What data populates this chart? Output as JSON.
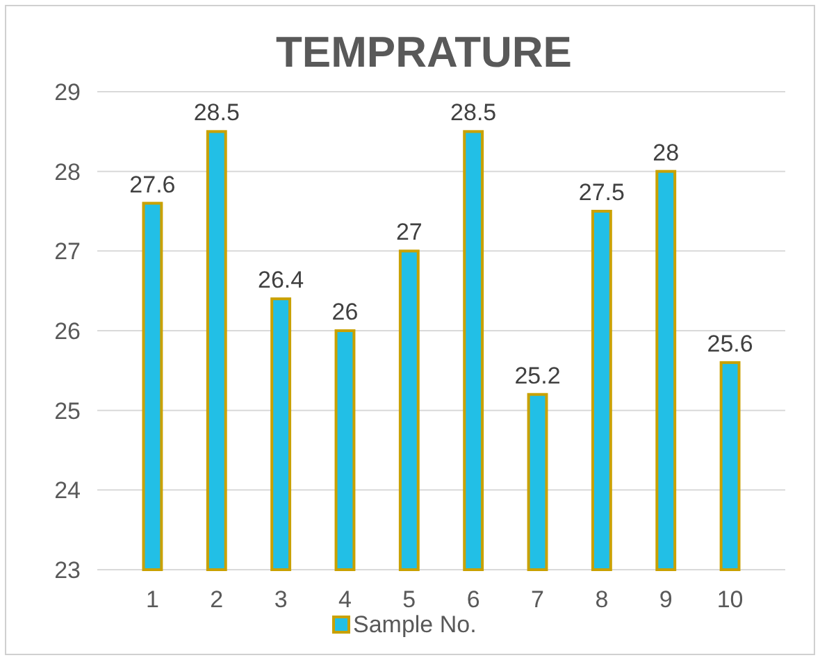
{
  "chart_data": {
    "type": "bar",
    "title": "TEMPRATURE",
    "categories": [
      "1",
      "2",
      "3",
      "4",
      "5",
      "6",
      "7",
      "8",
      "9",
      "10"
    ],
    "series": [
      {
        "name": "Sample No.",
        "color": "#22bfe6",
        "values": [
          27.6,
          28.5,
          26.4,
          26,
          27,
          28.5,
          25.2,
          27.5,
          28,
          25.6
        ]
      }
    ],
    "ylim": [
      23,
      29
    ],
    "yticks": [
      23,
      24,
      25,
      26,
      27,
      28,
      29
    ],
    "grid": "y",
    "data_labels": true,
    "legend": "bottom"
  }
}
